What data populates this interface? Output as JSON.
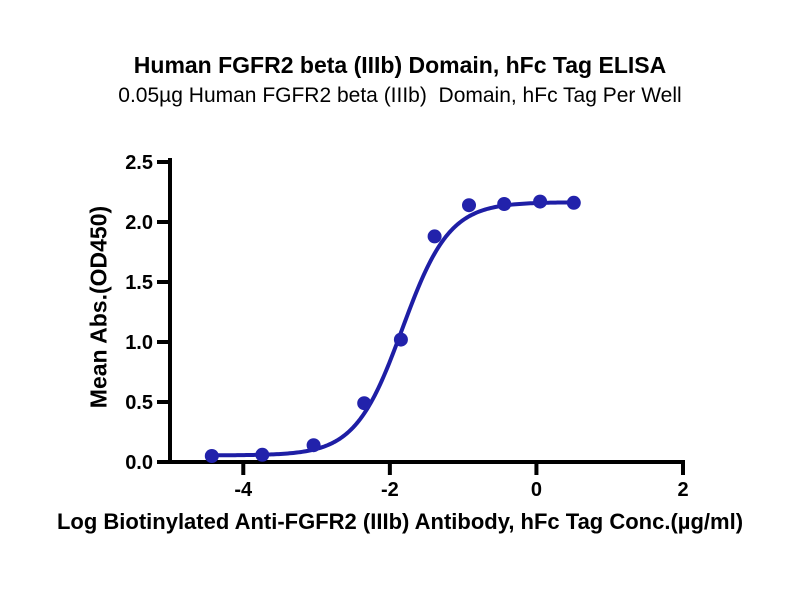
{
  "chart_data": {
    "type": "scatter",
    "title": "Human FGFR2 beta (IIIb) Domain, hFc Tag ELISA",
    "subtitle": "0.05µg Human FGFR2 beta (IIIb)  Domain, hFc Tag Per Well",
    "xlabel": "Log Biotinylated Anti-FGFR2 (IIIb) Antibody, hFc Tag Conc.(µg/ml)",
    "ylabel": "Mean Abs.(OD450)",
    "xlim": [
      -5,
      2
    ],
    "ylim": [
      0,
      2.5
    ],
    "xticks": {
      "values": [
        -4,
        -2,
        0,
        2
      ],
      "labels": [
        "-4",
        "-2",
        "0",
        "2"
      ]
    },
    "yticks": {
      "values": [
        0,
        0.5,
        1.0,
        1.5,
        2.0,
        2.5
      ],
      "labels": [
        "0.0",
        "0.5",
        "1.0",
        "1.5",
        "2.0",
        "2.5"
      ]
    },
    "grid": false,
    "legend": "none",
    "series": [
      {
        "marker": "circle",
        "marker_radius": 7,
        "color": "#2222AB",
        "points": [
          [
            -4.43,
            0.05
          ],
          [
            -3.74,
            0.06
          ],
          [
            -3.04,
            0.14
          ],
          [
            -2.35,
            0.49
          ],
          [
            -1.85,
            1.02
          ],
          [
            -1.39,
            1.88
          ],
          [
            -0.92,
            2.14
          ],
          [
            -0.44,
            2.15
          ],
          [
            0.05,
            2.17
          ],
          [
            0.51,
            2.16
          ]
        ]
      }
    ],
    "fit_curve": {
      "model": "4PL",
      "bottom": 0.055,
      "top": 2.165,
      "logEC50": -1.83,
      "hillslope": 1.35,
      "x_range": [
        -4.43,
        0.51
      ],
      "color": "#1E1EA5",
      "stroke_width": 4
    },
    "colors": {
      "axis": "#000000",
      "background": "#FFFFFF",
      "curve": "#1E1EA5",
      "marker": "#2222AB"
    }
  }
}
